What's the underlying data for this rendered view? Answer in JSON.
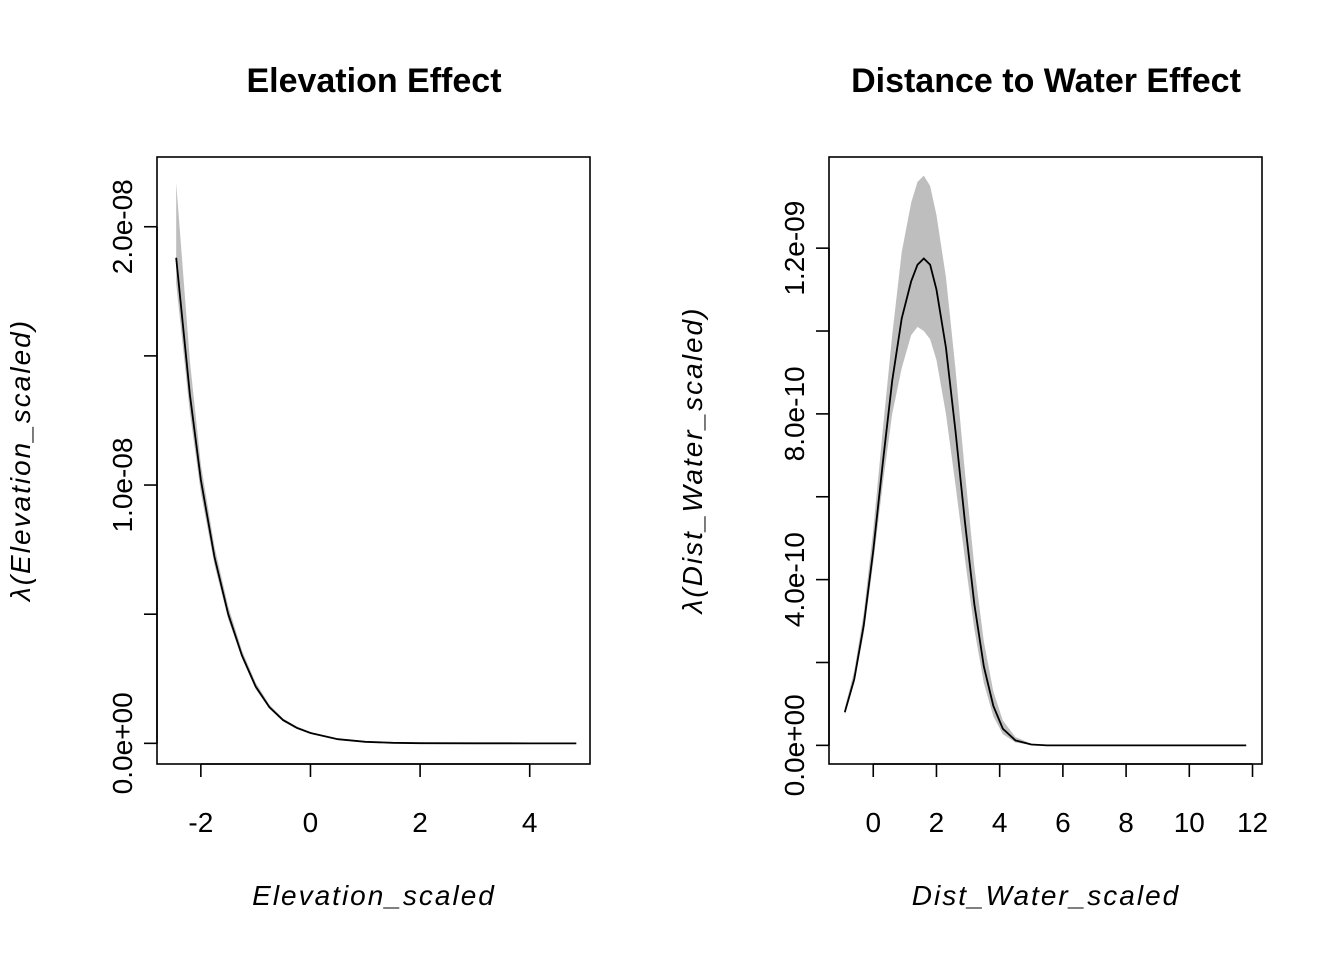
{
  "colors": {
    "band": "#bebebe",
    "line": "#000000",
    "background": "#ffffff"
  },
  "chart_data": [
    {
      "type": "line",
      "title": "Elevation Effect",
      "xlabel": "Elevation_scaled",
      "ylabel": "λ(Elevation_scaled)",
      "xlim": [
        -2.8,
        5.1
      ],
      "ylim": [
        -8e-10,
        2.27e-08
      ],
      "x_ticks": [
        -2,
        0,
        2,
        4
      ],
      "x_tick_labels": [
        "-2",
        "0",
        "2",
        "4"
      ],
      "y_ticks": [
        0,
        5e-09,
        1e-08,
        1.5e-08,
        2e-08
      ],
      "y_tick_labels": [
        "0.0e+00",
        "",
        "1.0e-08",
        "",
        "2.0e-08"
      ],
      "grid": false,
      "legend": "none",
      "series": [
        {
          "x": [
            -2.45,
            -2.2,
            -2.0,
            -1.75,
            -1.5,
            -1.25,
            -1.0,
            -0.75,
            -0.5,
            -0.25,
            0.0,
            0.5,
            1.0,
            1.5,
            2.0,
            3.0,
            4.0,
            4.85
          ],
          "values": [
            1.88e-08,
            1.35e-08,
            1.02e-08,
            7.2e-09,
            5e-09,
            3.4e-09,
            2.2e-09,
            1.4e-09,
            9e-10,
            6e-10,
            4e-10,
            1.6e-10,
            6e-11,
            2e-11,
            5e-12,
            1e-12,
            0.0,
            0.0
          ],
          "lower": [
            1.78e-08,
            1.28e-08,
            9.7e-09,
            6.9e-09,
            4.8e-09,
            3.3e-09,
            2.1e-09,
            1.35e-09,
            8.5e-10,
            5.5e-10,
            3.7e-10,
            1.4e-10,
            5e-11,
            1.5e-11,
            4e-12,
            1e-12,
            0.0,
            0.0
          ],
          "upper": [
            2.17e-08,
            1.48e-08,
            1.08e-08,
            7.6e-09,
            5.3e-09,
            3.6e-09,
            2.35e-09,
            1.5e-09,
            9.6e-10,
            6.5e-10,
            4.4e-10,
            1.8e-10,
            7e-11,
            2.5e-11,
            7e-12,
            1e-12,
            0.0,
            0.0
          ]
        }
      ]
    },
    {
      "type": "line",
      "title": "Distance to Water  Effect",
      "xlabel": "Dist_Water_scaled",
      "ylabel": "λ(Dist_Water_scaled)",
      "xlim": [
        -1.4,
        12.3
      ],
      "ylim": [
        -4.5e-11,
        1.42e-09
      ],
      "x_ticks": [
        0,
        2,
        4,
        6,
        8,
        10,
        12
      ],
      "x_tick_labels": [
        "0",
        "2",
        "4",
        "6",
        "8",
        "10",
        "12"
      ],
      "y_ticks": [
        0,
        2e-10,
        4e-10,
        6e-10,
        8e-10,
        1e-09,
        1.2e-09
      ],
      "y_tick_labels": [
        "0.0e+00",
        "",
        "4.0e-10",
        "",
        "8.0e-10",
        "",
        "1.2e-09"
      ],
      "grid": false,
      "legend": "none",
      "series": [
        {
          "x": [
            -0.9,
            -0.6,
            -0.3,
            0.0,
            0.3,
            0.6,
            0.9,
            1.2,
            1.4,
            1.6,
            1.8,
            2.0,
            2.3,
            2.6,
            2.9,
            3.2,
            3.5,
            3.8,
            4.1,
            4.5,
            5.0,
            5.5,
            6.0,
            8.0,
            10.0,
            11.8
          ],
          "values": [
            8e-11,
            1.6e-10,
            2.9e-10,
            4.7e-10,
            6.8e-10,
            8.8e-10,
            1.03e-09,
            1.12e-09,
            1.16e-09,
            1.175e-09,
            1.16e-09,
            1.1e-09,
            9.6e-10,
            7.6e-10,
            5.4e-10,
            3.4e-10,
            1.9e-10,
            9.5e-11,
            4e-11,
            1.2e-11,
            2e-12,
            0.0,
            0.0,
            0.0,
            0.0,
            0.0
          ],
          "lower": [
            7.5e-11,
            1.5e-10,
            2.7e-10,
            4.4e-10,
            6.3e-10,
            8e-10,
            9.1e-10,
            9.9e-10,
            1.01e-09,
            1e-09,
            9.8e-10,
            9.3e-10,
            8e-10,
            6.3e-10,
            4.5e-10,
            2.8e-10,
            1.5e-10,
            7e-11,
            2.7e-11,
            7e-12,
            1e-12,
            0.0,
            0.0,
            0.0,
            0.0,
            0.0
          ],
          "upper": [
            9e-11,
            1.8e-10,
            3.2e-10,
            5.2e-10,
            7.6e-10,
            9.9e-10,
            1.19e-09,
            1.31e-09,
            1.36e-09,
            1.375e-09,
            1.35e-09,
            1.28e-09,
            1.13e-09,
            9.1e-10,
            6.6e-10,
            4.3e-10,
            2.5e-10,
            1.3e-10,
            6e-11,
            2e-11,
            4e-12,
            0.0,
            0.0,
            0.0,
            0.0,
            0.0
          ]
        }
      ]
    }
  ]
}
